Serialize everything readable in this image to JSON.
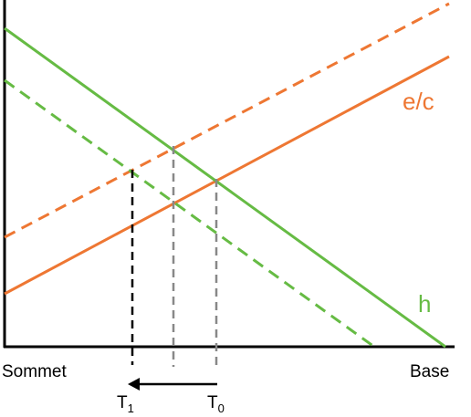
{
  "axis": {
    "left_label": "Sommet",
    "right_label": "Base"
  },
  "curves": {
    "ec_label": "e/c",
    "h_label": "h"
  },
  "markers": {
    "t1_base": "T",
    "t1_sub": "1",
    "t0_base": "T",
    "t0_sub": "0"
  },
  "colors": {
    "orange": "#ee7733",
    "green": "#66bb44",
    "black": "#000000",
    "gray": "#888888"
  }
}
